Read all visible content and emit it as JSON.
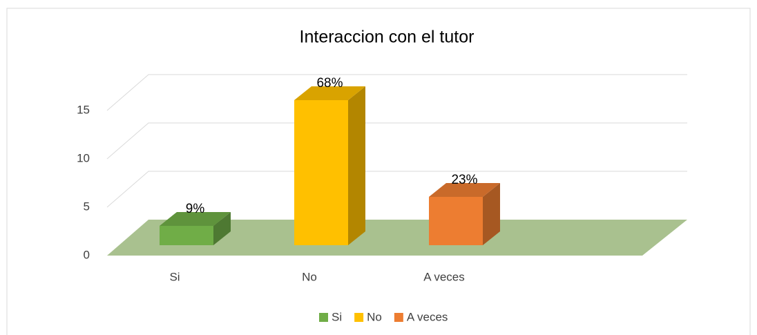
{
  "chart_data": {
    "type": "bar3d",
    "title": "Interaccion con el tutor",
    "categories": [
      "Si",
      "No",
      "A veces"
    ],
    "values": [
      2,
      15,
      5
    ],
    "percent": [
      9,
      68,
      23
    ],
    "percent_labels": [
      "9%",
      "68%",
      "23%"
    ],
    "colors": [
      "#70ad47",
      "#ffc000",
      "#ed7d31"
    ],
    "ylim": [
      0,
      15
    ],
    "yticks": [
      0,
      5,
      10,
      15
    ],
    "grid": true
  }
}
